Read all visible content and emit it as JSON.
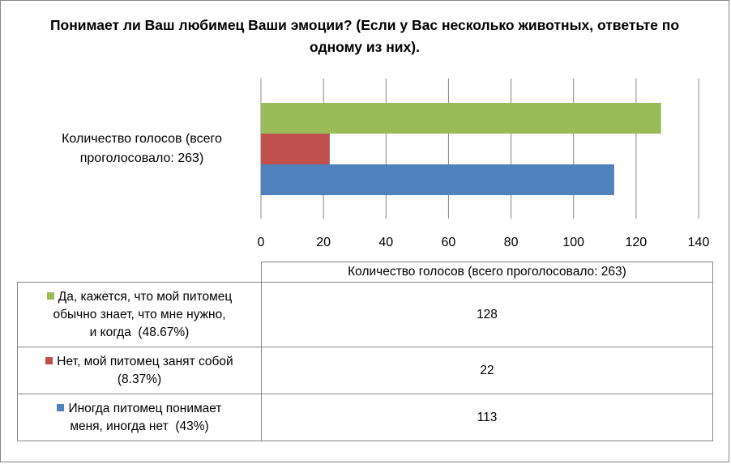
{
  "chart_data": {
    "type": "bar",
    "orientation": "horizontal",
    "title": "Понимает ли Ваш любимец Ваши эмоции? (Если у Вас несколько животных, ответьте по одному из них).",
    "categories": [
      "Количество голосов (всего проголосовало: 263)"
    ],
    "series": [
      {
        "name": "Да, кажется, что мой питомец обычно знает, что мне нужно, и когда  (48.67%)",
        "values": [
          128
        ],
        "color": "#9BBB59"
      },
      {
        "name": "Нет, мой питомец занят собой  (8.37%)",
        "values": [
          22
        ],
        "color": "#C0504D"
      },
      {
        "name": "Иногда питомец понимает меня, иногда нет  (43%)",
        "values": [
          113
        ],
        "color": "#4F81BD"
      }
    ],
    "xlim": [
      0,
      140
    ],
    "xticks": [
      0,
      20,
      40,
      60,
      80,
      100,
      120,
      140
    ],
    "grid": true,
    "data_table": true
  },
  "table": {
    "header": "Количество голосов (всего проголосовало: 263)",
    "rows": [
      {
        "label": "Да, кажется, что мой питомец обычно знает, что мне нужно, и когда  (48.67%)",
        "value": "128"
      },
      {
        "label": "Нет, мой питомец занят собой  (8.37%)",
        "value": "22"
      },
      {
        "label": "Иногда питомец понимает меня, иногда нет  (43%)",
        "value": "113"
      }
    ]
  }
}
